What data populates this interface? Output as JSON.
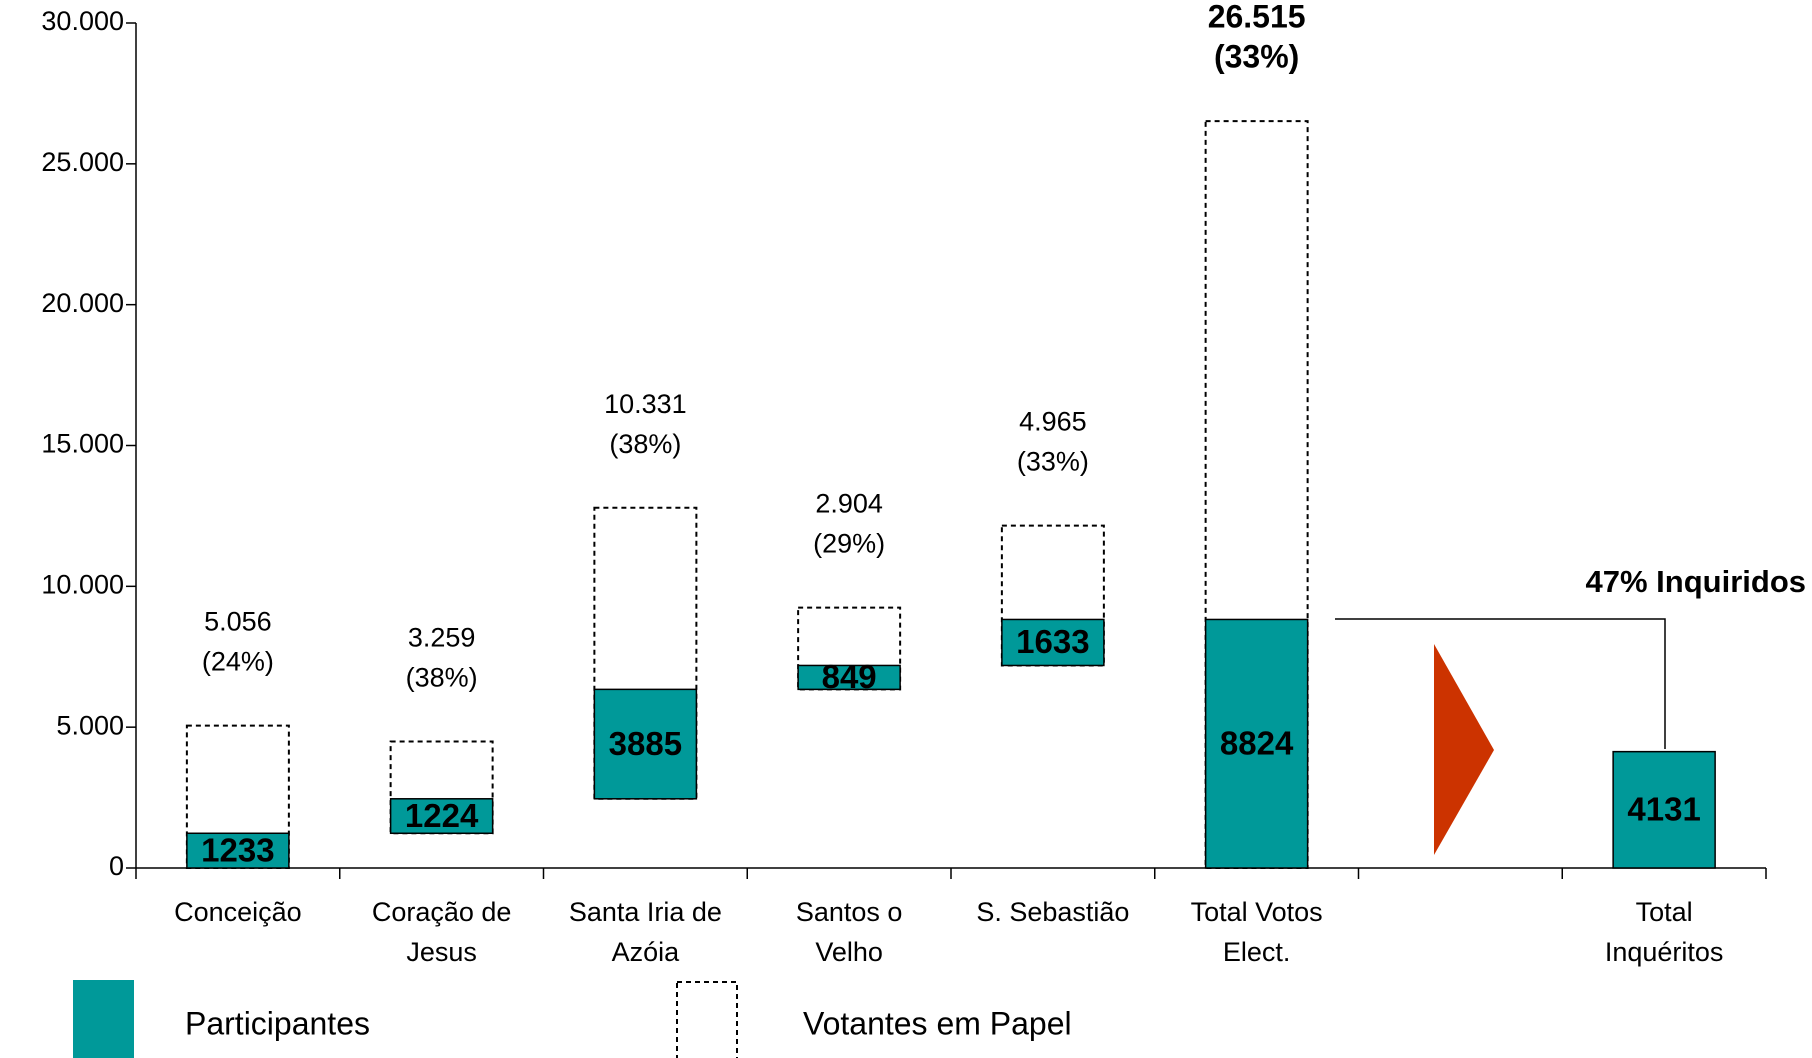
{
  "chart_data": {
    "type": "waterfall",
    "categories": [
      "Conceição",
      "Coração de\nJesus",
      "Santa Iria de\nAzóia",
      "Santos o\nVelho",
      "S. Sebastião",
      "Total  Votos\nElect.",
      null,
      "Total\nInquéritos"
    ],
    "totals": [
      5,
      7
    ],
    "series": [
      {
        "name": "Participantes",
        "color": "#009999",
        "style": "solid",
        "values": [
          1233,
          1224,
          3885,
          849,
          1633,
          8824,
          null,
          4131
        ]
      },
      {
        "name": "Votantes em Papel",
        "color": "#000000",
        "style": "dashed",
        "values": [
          5056,
          3259,
          10331,
          2904,
          4965,
          26515,
          null,
          null
        ],
        "value_labels": [
          "5.056",
          "3.259",
          "10.331",
          "2.904",
          "4.965",
          "26.515",
          null,
          null
        ],
        "share_labels": [
          "(24%)",
          "(38%)",
          "(38%)",
          "(29%)",
          "(33%)",
          "(33%)",
          null,
          null
        ]
      }
    ],
    "annotation": "47% Inquiridos",
    "ylim": [
      0,
      30000
    ],
    "yticks": [
      0,
      {
        "value": 5000,
        "label": "5.000"
      },
      {
        "value": 10000,
        "label": "10.000"
      },
      {
        "value": 15000,
        "label": "15.000"
      },
      {
        "value": 20000,
        "label": "20.000"
      },
      {
        "value": 25000,
        "label": "25.000"
      },
      {
        "value": 30000,
        "label": "30.000"
      }
    ],
    "arrow_color": "#cc3300"
  }
}
